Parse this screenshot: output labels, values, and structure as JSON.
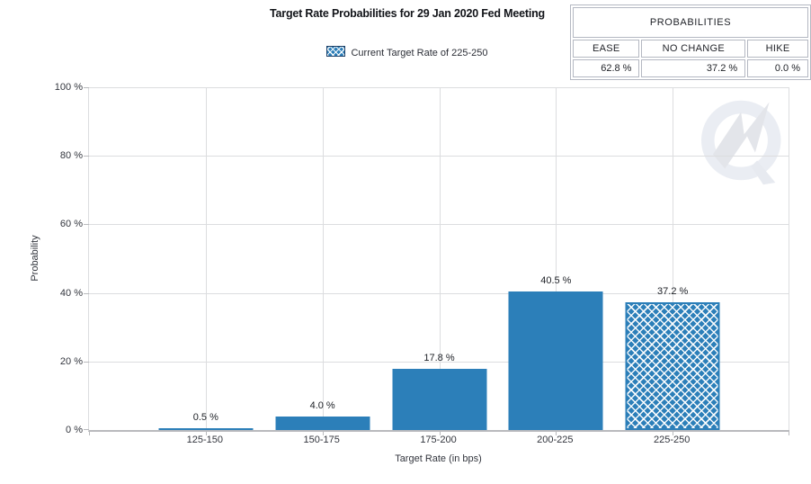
{
  "header": {
    "title": "Target Rate Probabilities for 29 Jan 2020 Fed Meeting"
  },
  "legend": {
    "label": "Current Target Rate of 225-250"
  },
  "probabilities_table": {
    "header": "PROBABILITIES",
    "columns": [
      "EASE",
      "NO CHANGE",
      "HIKE"
    ],
    "values": [
      "62.8 %",
      "37.2 %",
      "0.0 %"
    ]
  },
  "chart_data": {
    "type": "bar",
    "title": "Target Rate Probabilities for 29 Jan 2020 Fed Meeting",
    "categories": [
      "125-150",
      "150-175",
      "175-200",
      "200-225",
      "225-250"
    ],
    "values": [
      0.5,
      4.0,
      17.8,
      40.5,
      37.2
    ],
    "bar_labels": [
      "0.5 %",
      "4.0 %",
      "17.8 %",
      "40.5 %",
      "37.2 %"
    ],
    "highlight_index": 4,
    "highlight_style": "crosshatch",
    "legend": [
      "Current Target Rate of 225-250"
    ],
    "xlabel": "Target Rate (in bps)",
    "ylabel": "Probability",
    "ylim": [
      0,
      100
    ],
    "yticks": [
      "0 %",
      "20 %",
      "40 %",
      "60 %",
      "80 %",
      "100 %"
    ],
    "grid": true,
    "bar_color": "#2c7fb9",
    "watermark": "quikstrike-logo"
  },
  "colors": {
    "bar": "#2c7fb9",
    "gridline": "#dcdddf",
    "axis": "#b9babd",
    "table_border": "#b4b8c2",
    "text": "#1e2026"
  }
}
